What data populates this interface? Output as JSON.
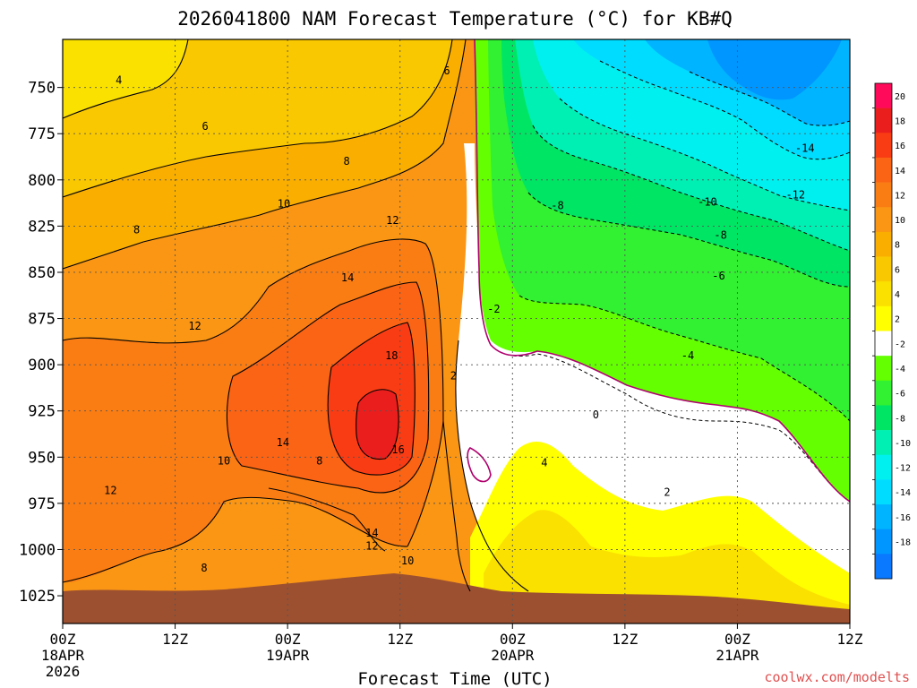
{
  "chart_data": {
    "type": "heatmap",
    "title": "2026041800 NAM Forecast Temperature (°C) for KB#Q",
    "xlabel": "Forecast Time (UTC)",
    "ylabel": "",
    "credit": "coolwx.com/modelts",
    "x_ticks": [
      {
        "hours": 0,
        "label": "00Z",
        "date": "18APR",
        "year": "2026"
      },
      {
        "hours": 12,
        "label": "12Z"
      },
      {
        "hours": 24,
        "label": "00Z",
        "date": "19APR"
      },
      {
        "hours": 36,
        "label": "12Z"
      },
      {
        "hours": 48,
        "label": "00Z",
        "date": "20APR"
      },
      {
        "hours": 60,
        "label": "12Z"
      },
      {
        "hours": 72,
        "label": "00Z",
        "date": "21APR"
      },
      {
        "hours": 84,
        "label": "12Z"
      }
    ],
    "xlim_hours": [
      0,
      84
    ],
    "y_ticks": [
      "750",
      "775",
      "800",
      "825",
      "850",
      "875",
      "900",
      "925",
      "950",
      "975",
      "1000",
      "1025"
    ],
    "y_tick_values": [
      750,
      775,
      800,
      825,
      850,
      875,
      900,
      925,
      950,
      975,
      1000,
      1025
    ],
    "ylim_hpa": [
      724,
      1040
    ],
    "colorbar": {
      "labels": [
        "20",
        "18",
        "16",
        "14",
        "12",
        "10",
        "8",
        "6",
        "4",
        "2",
        "-2",
        "-4",
        "-6",
        "-8",
        "-10",
        "-12",
        "-14",
        "-16",
        "-18"
      ],
      "bins": [
        {
          "lo": 20,
          "hi": 22,
          "color": "#ff0a5a"
        },
        {
          "lo": 18,
          "hi": 20,
          "color": "#eb1e1e"
        },
        {
          "lo": 16,
          "hi": 18,
          "color": "#fa3c14"
        },
        {
          "lo": 14,
          "hi": 16,
          "color": "#fa6414"
        },
        {
          "lo": 12,
          "hi": 14,
          "color": "#fa7d14"
        },
        {
          "lo": 10,
          "hi": 12,
          "color": "#fa9614"
        },
        {
          "lo": 8,
          "hi": 10,
          "color": "#faaf00"
        },
        {
          "lo": 6,
          "hi": 8,
          "color": "#fac800"
        },
        {
          "lo": 4,
          "hi": 6,
          "color": "#fae100"
        },
        {
          "lo": 2,
          "hi": 4,
          "color": "#ffff00"
        },
        {
          "lo": -2,
          "hi": 2,
          "color": "#ffffff"
        },
        {
          "lo": -4,
          "hi": -2,
          "color": "#64ff00"
        },
        {
          "lo": -6,
          "hi": -4,
          "color": "#32f032"
        },
        {
          "lo": -8,
          "hi": -6,
          "color": "#00e664"
        },
        {
          "lo": -10,
          "hi": -8,
          "color": "#00f0b4"
        },
        {
          "lo": -12,
          "hi": -10,
          "color": "#00f0f0"
        },
        {
          "lo": -14,
          "hi": -12,
          "color": "#00dcff"
        },
        {
          "lo": -16,
          "hi": -14,
          "color": "#00b4ff"
        },
        {
          "lo": -18,
          "hi": -16,
          "color": "#0096ff"
        },
        {
          "lo": -20,
          "hi": -18,
          "color": "#0a78ff"
        }
      ]
    },
    "contour_labels": [
      {
        "text": "4",
        "hours": 6.0,
        "hpa": 746
      },
      {
        "text": "6",
        "hours": 15.2,
        "hpa": 771
      },
      {
        "text": "8",
        "hours": 30.3,
        "hpa": 790
      },
      {
        "text": "8",
        "hours": 7.9,
        "hpa": 827
      },
      {
        "text": "10",
        "hours": 23.6,
        "hpa": 813
      },
      {
        "text": "12",
        "hours": 35.2,
        "hpa": 822
      },
      {
        "text": "14",
        "hours": 30.4,
        "hpa": 853
      },
      {
        "text": "12",
        "hours": 14.1,
        "hpa": 879
      },
      {
        "text": "18",
        "hours": 35.1,
        "hpa": 895
      },
      {
        "text": "16",
        "hours": 35.8,
        "hpa": 946
      },
      {
        "text": "14",
        "hours": 23.5,
        "hpa": 942
      },
      {
        "text": "8",
        "hours": 27.4,
        "hpa": 952
      },
      {
        "text": "10",
        "hours": 17.2,
        "hpa": 952
      },
      {
        "text": "12",
        "hours": 5.1,
        "hpa": 968
      },
      {
        "text": "14",
        "hours": 33.0,
        "hpa": 991
      },
      {
        "text": "12",
        "hours": 33.0,
        "hpa": 998
      },
      {
        "text": "10",
        "hours": 36.8,
        "hpa": 1006
      },
      {
        "text": "8",
        "hours": 15.1,
        "hpa": 1010
      },
      {
        "text": "6",
        "hours": 41.0,
        "hpa": 741
      },
      {
        "text": "2",
        "hours": 41.7,
        "hpa": 906
      },
      {
        "text": "-2",
        "hours": 46.0,
        "hpa": 870
      },
      {
        "text": "0",
        "hours": 56.9,
        "hpa": 927
      },
      {
        "text": "4",
        "hours": 51.4,
        "hpa": 953
      },
      {
        "text": "2",
        "hours": 64.5,
        "hpa": 969
      },
      {
        "text": "-4",
        "hours": 66.7,
        "hpa": 895
      },
      {
        "text": "-6",
        "hours": 70.0,
        "hpa": 852
      },
      {
        "text": "-8",
        "hours": 70.2,
        "hpa": 830
      },
      {
        "text": "-8",
        "hours": 52.8,
        "hpa": 814
      },
      {
        "text": "-10",
        "hours": 68.8,
        "hpa": 812
      },
      {
        "text": "-12",
        "hours": 78.2,
        "hpa": 808
      },
      {
        "text": "-14",
        "hours": 79.2,
        "hpa": 783
      }
    ],
    "terrain_color": "#9c5030",
    "grid": true
  }
}
